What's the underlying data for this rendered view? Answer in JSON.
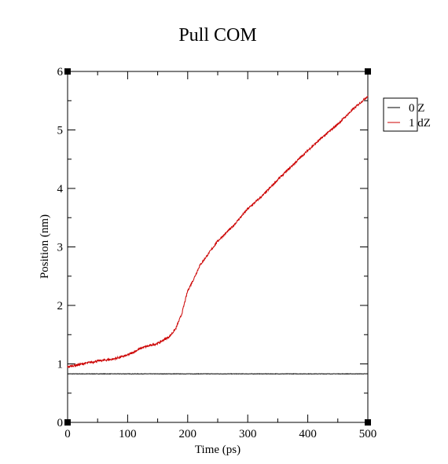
{
  "chart_data": {
    "type": "line",
    "title": "Pull COM",
    "xlabel": "Time (ps)",
    "ylabel": "Position (nm)",
    "xlim": [
      0,
      500
    ],
    "ylim": [
      0,
      6
    ],
    "xticks": [
      0,
      100,
      200,
      300,
      400,
      500
    ],
    "yticks": [
      0,
      1,
      2,
      3,
      4,
      5,
      6
    ],
    "grid": false,
    "legend_placement": "right, outside",
    "series": [
      {
        "name": "0 Z",
        "color": "#000000",
        "x": [
          0,
          50,
          100,
          150,
          175,
          200,
          250,
          300,
          350,
          400,
          450,
          500
        ],
        "y": [
          0.83,
          0.83,
          0.83,
          0.83,
          0.83,
          0.83,
          0.83,
          0.83,
          0.83,
          0.83,
          0.83,
          0.83
        ]
      },
      {
        "name": "1 dZ",
        "color": "#cc0000",
        "x": [
          0,
          25,
          50,
          75,
          100,
          125,
          150,
          170,
          180,
          190,
          200,
          210,
          220,
          230,
          250,
          275,
          300,
          325,
          350,
          375,
          400,
          425,
          450,
          475,
          500
        ],
        "y": [
          0.95,
          1.0,
          1.05,
          1.08,
          1.15,
          1.28,
          1.35,
          1.47,
          1.6,
          1.85,
          2.25,
          2.45,
          2.68,
          2.82,
          3.1,
          3.35,
          3.65,
          3.88,
          4.15,
          4.4,
          4.65,
          4.88,
          5.1,
          5.35,
          5.58
        ]
      }
    ]
  }
}
